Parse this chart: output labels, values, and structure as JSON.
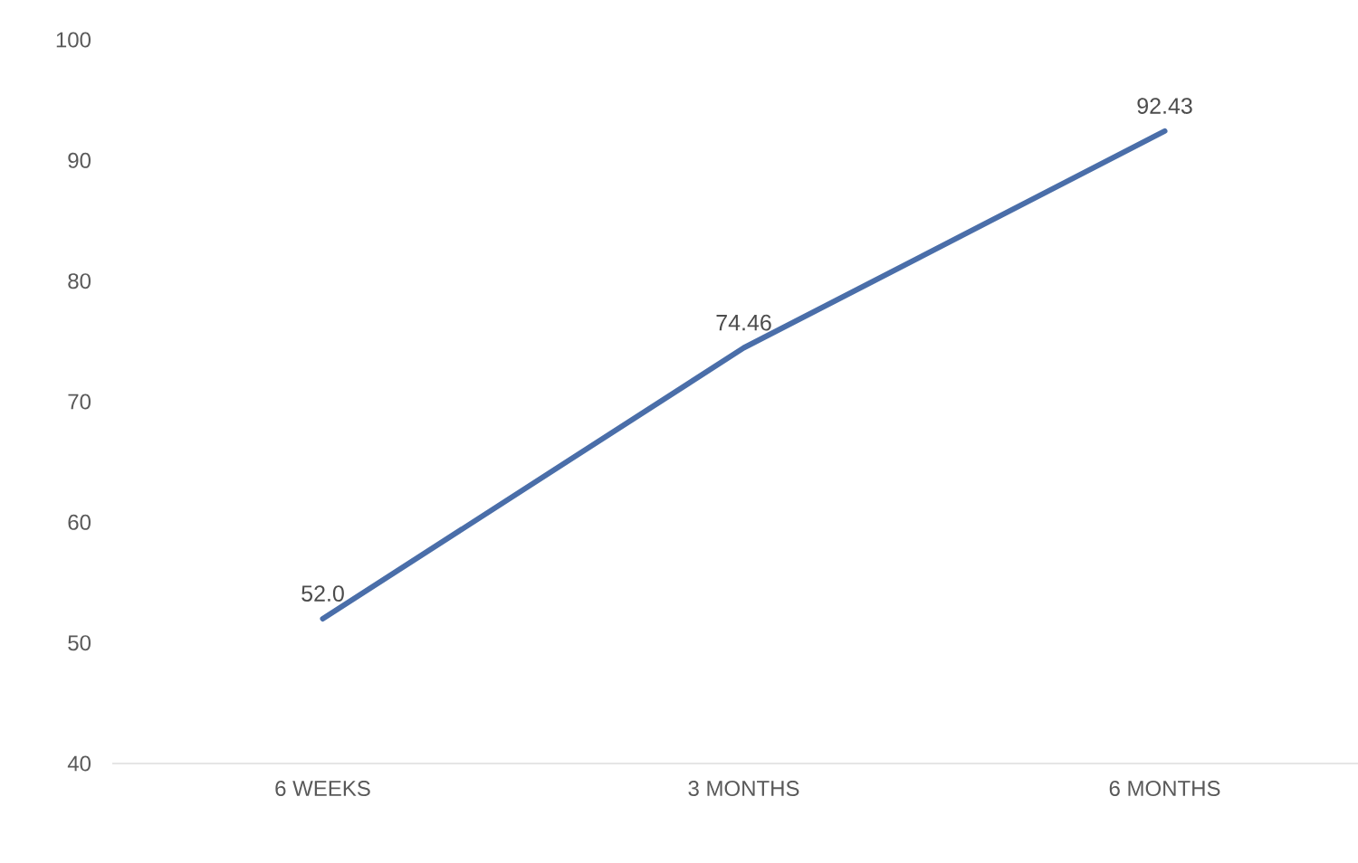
{
  "chart_data": {
    "type": "line",
    "categories": [
      "6 WEEKS",
      "3 MONTHS",
      "6 MONTHS"
    ],
    "series": [
      {
        "color": "#4a6ea9",
        "values": [
          52.0,
          74.46,
          92.43
        ],
        "value_labels": [
          "52.0",
          "74.46",
          "92.43"
        ]
      }
    ],
    "ylim": [
      40,
      100
    ],
    "yticks": [
      40,
      50,
      60,
      70,
      80,
      90,
      100
    ],
    "grid": false,
    "marker": "none",
    "line_style": "solid"
  }
}
